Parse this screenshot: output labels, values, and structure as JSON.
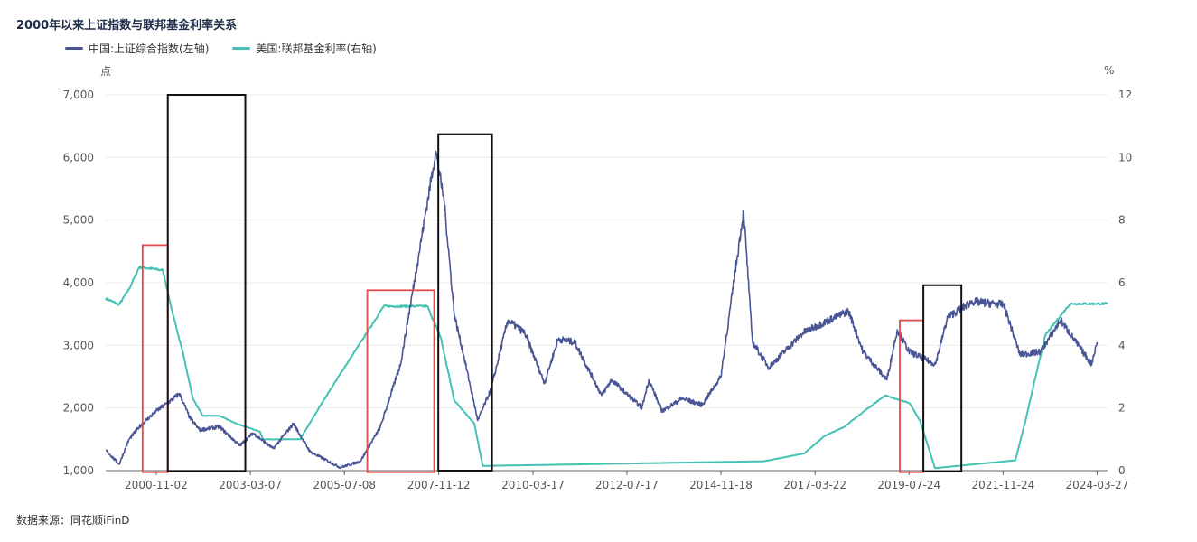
{
  "title": "2000年以来上证指数与联邦基金利率关系",
  "source": "数据来源：同花顺iFinD",
  "colors": {
    "sh": "#4a5596",
    "ff": "#45c1b3",
    "grid": "#ececec",
    "axis": "#666666",
    "red_box": "#e04a4a",
    "black_box": "#111111"
  },
  "chart_data": {
    "type": "line",
    "title": "2000年以来上证指数与联邦基金利率关系",
    "y_left_unit": "点",
    "y_right_unit": "%",
    "y_left_ticks": [
      "1,000",
      "2,000",
      "3,000",
      "4,000",
      "5,000",
      "6,000",
      "7,000"
    ],
    "y_right_ticks": [
      "0",
      "2",
      "4",
      "6",
      "8",
      "10",
      "12"
    ],
    "ylim_left": [
      1000,
      7000
    ],
    "ylim_right": [
      0,
      12
    ],
    "x_ticks": [
      "2000-11-02",
      "2003-03-07",
      "2005-07-08",
      "2007-11-12",
      "2010-03-17",
      "2012-07-17",
      "2014-11-18",
      "2017-03-22",
      "2019-07-24",
      "2021-11-24",
      "2024-03-27"
    ],
    "xlim": [
      "1999-08-01",
      "2024-06-30"
    ],
    "legend_position": "top-left",
    "grid": "horizontal",
    "series": [
      {
        "name": "中国:上证综合指数(左轴)",
        "axis": "left",
        "points": [
          [
            "1999-08-01",
            1330
          ],
          [
            "1999-12-01",
            1100
          ],
          [
            "2000-03-01",
            1500
          ],
          [
            "2000-06-01",
            1700
          ],
          [
            "2000-11-01",
            1950
          ],
          [
            "2001-03-01",
            2100
          ],
          [
            "2001-06-01",
            2230
          ],
          [
            "2001-09-01",
            1850
          ],
          [
            "2001-12-01",
            1650
          ],
          [
            "2002-06-01",
            1700
          ],
          [
            "2002-12-01",
            1400
          ],
          [
            "2003-04-01",
            1600
          ],
          [
            "2003-10-01",
            1350
          ],
          [
            "2004-04-01",
            1750
          ],
          [
            "2004-09-01",
            1300
          ],
          [
            "2005-06-01",
            1050
          ],
          [
            "2005-12-01",
            1150
          ],
          [
            "2006-06-01",
            1700
          ],
          [
            "2006-12-01",
            2700
          ],
          [
            "2007-05-01",
            4300
          ],
          [
            "2007-10-16",
            6100
          ],
          [
            "2008-01-01",
            5300
          ],
          [
            "2008-04-01",
            3500
          ],
          [
            "2008-07-01",
            2800
          ],
          [
            "2008-11-01",
            1800
          ],
          [
            "2009-03-01",
            2300
          ],
          [
            "2009-08-01",
            3400
          ],
          [
            "2010-01-01",
            3200
          ],
          [
            "2010-07-01",
            2400
          ],
          [
            "2010-11-01",
            3100
          ],
          [
            "2011-04-01",
            3050
          ],
          [
            "2011-12-01",
            2200
          ],
          [
            "2012-03-01",
            2450
          ],
          [
            "2012-12-01",
            2000
          ],
          [
            "2013-02-01",
            2450
          ],
          [
            "2013-06-01",
            1950
          ],
          [
            "2013-12-01",
            2150
          ],
          [
            "2014-06-01",
            2050
          ],
          [
            "2014-11-18",
            2500
          ],
          [
            "2015-06-12",
            5150
          ],
          [
            "2015-09-01",
            3050
          ],
          [
            "2016-01-28",
            2650
          ],
          [
            "2016-12-01",
            3200
          ],
          [
            "2018-01-20",
            3550
          ],
          [
            "2018-06-01",
            2900
          ],
          [
            "2019-01-04",
            2450
          ],
          [
            "2019-04-08",
            3250
          ],
          [
            "2019-07-24",
            2900
          ],
          [
            "2020-03-19",
            2700
          ],
          [
            "2020-07-09",
            3450
          ],
          [
            "2021-02-18",
            3700
          ],
          [
            "2021-12-01",
            3650
          ],
          [
            "2022-04-27",
            2850
          ],
          [
            "2022-10-31",
            2900
          ],
          [
            "2023-05-01",
            3400
          ],
          [
            "2024-02-05",
            2700
          ],
          [
            "2024-03-27",
            3050
          ]
        ]
      },
      {
        "name": "美国:联邦基金利率(右轴)",
        "axis": "right",
        "points": [
          [
            "1999-08-01",
            5.5
          ],
          [
            "1999-12-01",
            5.3
          ],
          [
            "2000-03-01",
            5.8
          ],
          [
            "2000-06-01",
            6.5
          ],
          [
            "2001-01-01",
            6.4
          ],
          [
            "2001-04-01",
            5.0
          ],
          [
            "2001-07-01",
            3.8
          ],
          [
            "2001-10-01",
            2.3
          ],
          [
            "2002-01-01",
            1.75
          ],
          [
            "2002-06-01",
            1.75
          ],
          [
            "2002-11-01",
            1.5
          ],
          [
            "2003-06-01",
            1.25
          ],
          [
            "2003-07-01",
            1.0
          ],
          [
            "2004-06-01",
            1.0
          ],
          [
            "2005-01-01",
            2.25
          ],
          [
            "2005-07-01",
            3.25
          ],
          [
            "2006-01-01",
            4.25
          ],
          [
            "2006-07-01",
            5.25
          ],
          [
            "2007-08-01",
            5.25
          ],
          [
            "2007-12-01",
            4.25
          ],
          [
            "2008-04-01",
            2.25
          ],
          [
            "2008-10-01",
            1.5
          ],
          [
            "2008-12-16",
            0.15
          ],
          [
            "2015-12-16",
            0.3
          ],
          [
            "2016-12-14",
            0.55
          ],
          [
            "2017-06-14",
            1.1
          ],
          [
            "2017-12-13",
            1.4
          ],
          [
            "2018-06-13",
            1.9
          ],
          [
            "2018-12-19",
            2.4
          ],
          [
            "2019-07-31",
            2.15
          ],
          [
            "2019-10-30",
            1.6
          ],
          [
            "2020-03-16",
            0.08
          ],
          [
            "2022-03-16",
            0.33
          ],
          [
            "2022-06-15",
            1.58
          ],
          [
            "2022-09-21",
            3.08
          ],
          [
            "2022-12-14",
            4.33
          ],
          [
            "2023-07-26",
            5.33
          ],
          [
            "2024-06-30",
            5.33
          ]
        ]
      }
    ],
    "annotations": {
      "red_boxes": [
        [
          "2000-07-01",
          "2001-02-15",
          975,
          4600
        ],
        [
          "2006-02-01",
          "2007-10-01",
          975,
          3880
        ],
        [
          "2019-05-01",
          "2019-12-01",
          975,
          3400
        ]
      ],
      "black_boxes": [
        [
          "2001-02-15",
          "2003-01-20",
          995,
          7000
        ],
        [
          "2007-11-08",
          "2009-03-10",
          1000,
          6370
        ],
        [
          "2019-12-01",
          "2020-11-10",
          990,
          3960
        ]
      ]
    }
  }
}
